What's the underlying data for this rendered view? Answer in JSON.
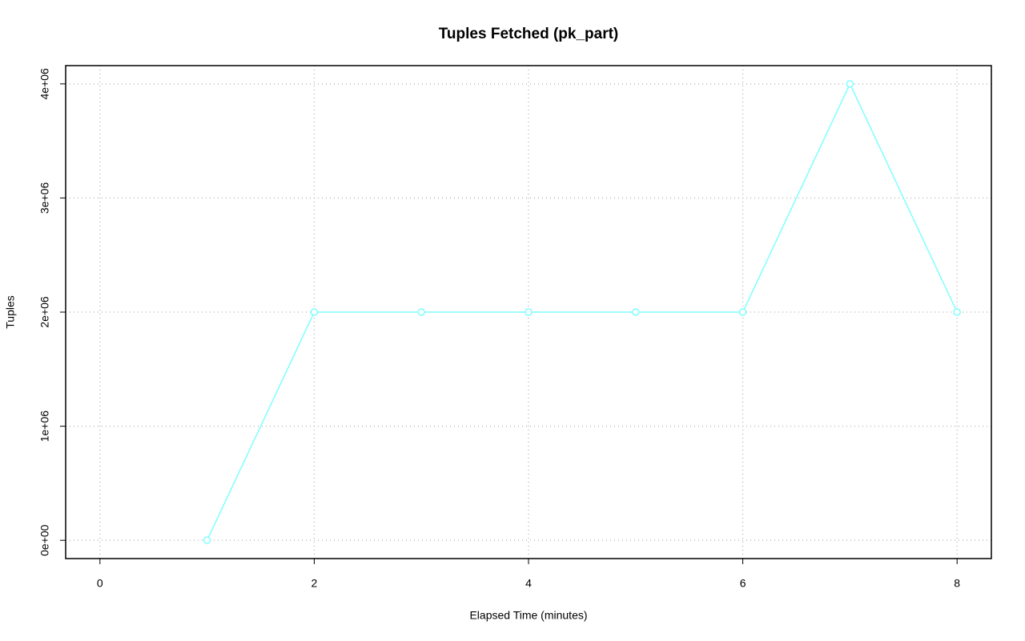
{
  "chart_data": {
    "type": "line",
    "title": "Tuples Fetched (pk_part)",
    "x_label": "Elapsed Time (minutes)",
    "y_label": "Tuples",
    "x": [
      1,
      2,
      3,
      4,
      5,
      6,
      7,
      8
    ],
    "values": [
      0,
      2000000,
      2000000,
      2000000,
      2000000,
      2000000,
      4000000,
      2000000
    ],
    "color": "#80ffff",
    "xlim": [
      -0.32,
      8.32
    ],
    "xticks": [
      0,
      2,
      4,
      6,
      8
    ],
    "ylim": [
      -160000,
      4160000
    ],
    "yticks": [
      {
        "value": 0,
        "label": "0e+00"
      },
      {
        "value": 1000000,
        "label": "1e+06"
      },
      {
        "value": 2000000,
        "label": "2e+06"
      },
      {
        "value": 3000000,
        "label": "3e+06"
      },
      {
        "value": 4000000,
        "label": "4e+06"
      }
    ],
    "grid": true
  }
}
